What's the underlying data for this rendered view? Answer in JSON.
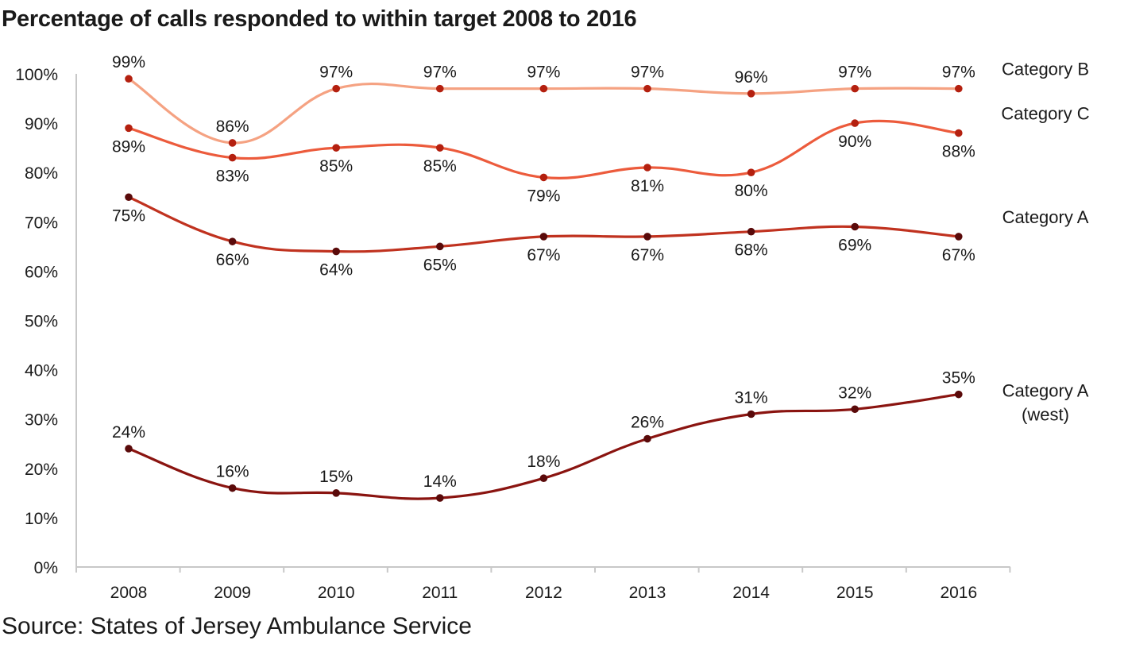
{
  "title": "Percentage of calls responded to within target 2008 to 2016",
  "source": "Source: States of Jersey Ambulance Service",
  "chart_data": {
    "type": "line",
    "title": "Percentage of calls responded to within target 2008 to 2016",
    "xlabel": "",
    "ylabel": "",
    "x": [
      "2008",
      "2009",
      "2010",
      "2011",
      "2012",
      "2013",
      "2014",
      "2015",
      "2016"
    ],
    "ylim": [
      0,
      100
    ],
    "yticks": [
      "0%",
      "10%",
      "20%",
      "30%",
      "40%",
      "50%",
      "60%",
      "70%",
      "80%",
      "90%",
      "100%"
    ],
    "grid": false,
    "legend": "series labels at right end of lines",
    "series": [
      {
        "name": "Category B",
        "color": "#F5A282",
        "values": [
          99,
          86,
          97,
          97,
          97,
          97,
          96,
          97,
          97
        ],
        "labels": [
          "99%",
          "86%",
          "97%",
          "97%",
          "97%",
          "97%",
          "96%",
          "97%",
          "97%"
        ],
        "label_pos": [
          "above",
          "above",
          "above",
          "above",
          "above",
          "above",
          "above",
          "above",
          "above"
        ]
      },
      {
        "name": "Category C",
        "color": "#EC5B3C",
        "values": [
          89,
          83,
          85,
          85,
          79,
          81,
          80,
          90,
          88
        ],
        "labels": [
          "89%",
          "83%",
          "85%",
          "85%",
          "79%",
          "81%",
          "80%",
          "90%",
          "88%"
        ],
        "label_pos": [
          "below",
          "below",
          "below",
          "below",
          "below",
          "below",
          "below",
          "below",
          "below"
        ]
      },
      {
        "name": "Category A",
        "color": "#C0321F",
        "values": [
          75,
          66,
          64,
          65,
          67,
          67,
          68,
          69,
          67
        ],
        "labels": [
          "75%",
          "66%",
          "64%",
          "65%",
          "67%",
          "67%",
          "68%",
          "69%",
          "67%"
        ],
        "label_pos": [
          "below",
          "below",
          "below",
          "below",
          "below",
          "below",
          "below",
          "below",
          "below"
        ]
      },
      {
        "name": "Category A (west)",
        "name_lines": [
          "Category A",
          "(west)"
        ],
        "color": "#8A1410",
        "values": [
          24,
          16,
          15,
          14,
          18,
          26,
          31,
          32,
          35
        ],
        "labels": [
          "24%",
          "16%",
          "15%",
          "14%",
          "18%",
          "26%",
          "31%",
          "32%",
          "35%"
        ],
        "label_pos": [
          "above",
          "above",
          "above",
          "above",
          "above",
          "above",
          "above",
          "above",
          "above"
        ]
      }
    ]
  }
}
